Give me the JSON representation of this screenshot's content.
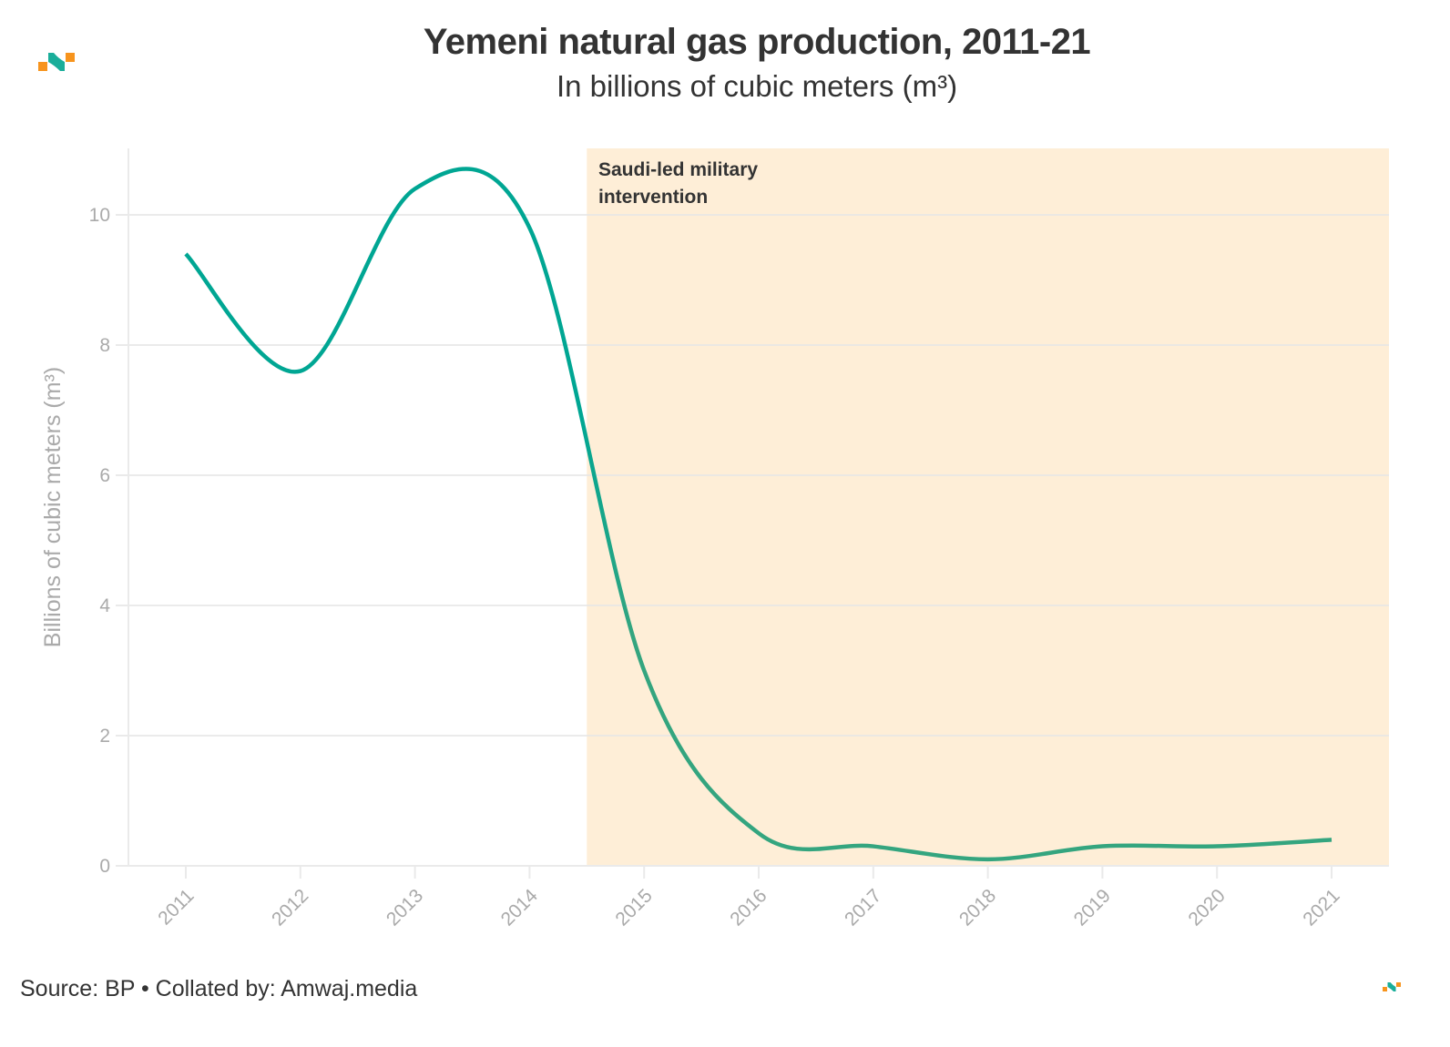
{
  "header": {
    "title": "Yemeni natural gas production, 2011-21",
    "subtitle": "In billions of cubic meters (m³)"
  },
  "footer": {
    "source": "Source: BP • Collated by: Amwaj.media"
  },
  "colors": {
    "line_before": "#00a693",
    "line_after": "#34a57f",
    "shade": "#feeed7",
    "logo_teal": "#1aae9a",
    "logo_orange": "#f7941d",
    "grid": "#eaeaea",
    "tick_text": "#aaaaaa"
  },
  "chart_data": {
    "type": "line",
    "title": "Yemeni natural gas production, 2011-21",
    "subtitle": "In billions of cubic meters (m³)",
    "xlabel": "",
    "ylabel": "Billions of cubic meters (m³)",
    "x": [
      2011,
      2012,
      2013,
      2014,
      2015,
      2016,
      2017,
      2018,
      2019,
      2020,
      2021
    ],
    "x_tick_labels": [
      "2011",
      "2012",
      "2013",
      "2014",
      "2015",
      "2016",
      "2017",
      "2018",
      "2019",
      "2020",
      "2021"
    ],
    "series": [
      {
        "name": "Natural gas production",
        "values": [
          9.4,
          7.6,
          10.4,
          9.8,
          3.0,
          0.5,
          0.3,
          0.1,
          0.3,
          0.3,
          0.4
        ]
      }
    ],
    "ylim": [
      0,
      11
    ],
    "xlim": [
      2010.5,
      2021.5
    ],
    "y_ticks": [
      0,
      2,
      4,
      6,
      8,
      10
    ],
    "y_tick_labels": [
      "0",
      "2",
      "4",
      "6",
      "8",
      "10"
    ],
    "grid": true,
    "shaded_region": {
      "x_start": 2014.5,
      "x_end": 2021.5,
      "label_line1": "Saudi-led military",
      "label_line2": "intervention"
    },
    "smooth": true
  }
}
